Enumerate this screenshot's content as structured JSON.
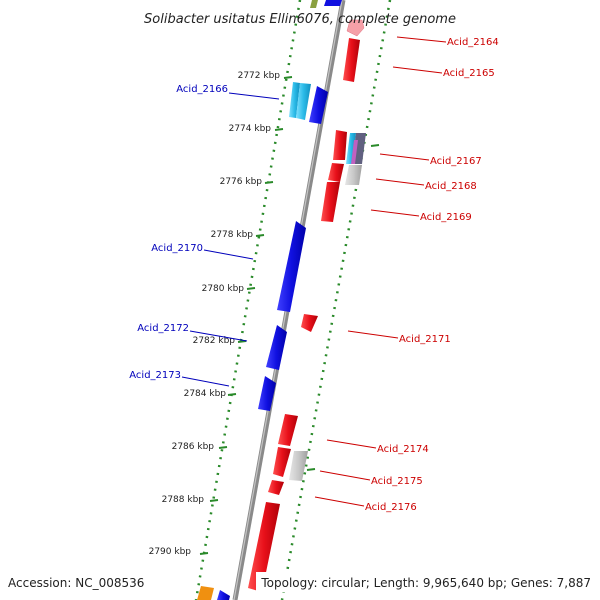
{
  "title": "Solibacter usitatus Ellin6076, complete genome",
  "footer": {
    "accession": "Accession: NC_008536",
    "topology": "Topology: circular; Length: 9,965,640 bp; Genes: 7,887"
  },
  "colors": {
    "forward_gene": "#e8101a",
    "reverse_gene": "#1010e0",
    "forward_label": "#cc0000",
    "reverse_label": "#0000bb",
    "backbone": "#8a8a8a",
    "dotted_track": "#2a8a2a",
    "hypothetical": "#c8c8c8",
    "rna_cyan": "#2bbbe8",
    "pseudo_pink": "#f5a0a8",
    "olive": "#8aa040",
    "orange": "#f09010"
  },
  "kbp_ticks": [
    {
      "label": "2772 kbp"
    },
    {
      "label": "2774 kbp"
    },
    {
      "label": "2776 kbp"
    },
    {
      "label": "2778 kbp"
    },
    {
      "label": "2780 kbp"
    },
    {
      "label": "2782 kbp"
    },
    {
      "label": "2784 kbp"
    },
    {
      "label": "2786 kbp"
    },
    {
      "label": "2788 kbp"
    },
    {
      "label": "2790 kbp"
    }
  ],
  "genes_reverse": [
    {
      "label": "Acid_2166"
    },
    {
      "label": "Acid_2170"
    },
    {
      "label": "Acid_2172"
    },
    {
      "label": "Acid_2173"
    }
  ],
  "genes_forward": [
    {
      "label": "Acid_2164"
    },
    {
      "label": "Acid_2165"
    },
    {
      "label": "Acid_2167"
    },
    {
      "label": "Acid_2168"
    },
    {
      "label": "Acid_2169"
    },
    {
      "label": "Acid_2171"
    },
    {
      "label": "Acid_2174"
    },
    {
      "label": "Acid_2175"
    },
    {
      "label": "Acid_2176"
    }
  ]
}
